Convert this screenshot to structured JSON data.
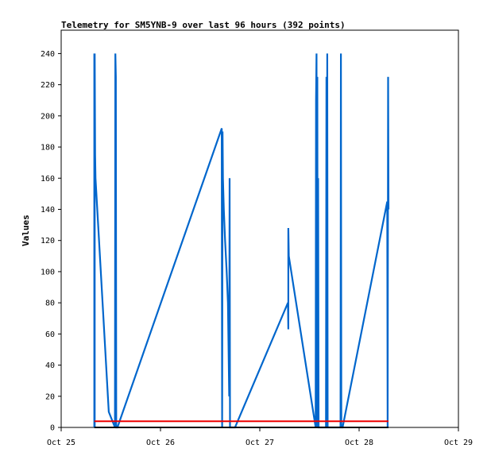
{
  "chart_data": {
    "type": "line",
    "title": "Telemetry for SM5YNB-9 over last 96 hours (392 points)",
    "xlabel": "",
    "ylabel": "Values",
    "xlim": [
      0,
      96
    ],
    "ylim": [
      0,
      255
    ],
    "x_ticks": [
      {
        "value": 0,
        "label": "Oct 25"
      },
      {
        "value": 24,
        "label": "Oct 26"
      },
      {
        "value": 48,
        "label": "Oct 27"
      },
      {
        "value": 72,
        "label": "Oct 28"
      },
      {
        "value": 96,
        "label": "Oct 29"
      }
    ],
    "y_ticks": [
      0,
      20,
      40,
      60,
      80,
      100,
      120,
      140,
      160,
      180,
      200,
      220,
      240
    ],
    "grid": false,
    "series": [
      {
        "color": "#0066cc",
        "points": [
          [
            8.0,
            0
          ],
          [
            8.0,
            240
          ],
          [
            8.1,
            0
          ],
          [
            8.1,
            240
          ],
          [
            8.2,
            175
          ],
          [
            8.3,
            160
          ],
          [
            11.5,
            10
          ],
          [
            13.0,
            0
          ],
          [
            13.1,
            240
          ],
          [
            13.2,
            225
          ],
          [
            13.3,
            0
          ],
          [
            13.6,
            0
          ],
          [
            38.8,
            192
          ],
          [
            38.9,
            0
          ],
          [
            39.0,
            190
          ],
          [
            39.1,
            160
          ],
          [
            39.3,
            140
          ],
          [
            39.6,
            120
          ],
          [
            40.0,
            100
          ],
          [
            40.3,
            80
          ],
          [
            40.6,
            20
          ],
          [
            40.7,
            160
          ],
          [
            40.8,
            0
          ],
          [
            42.0,
            0
          ],
          [
            54.8,
            80
          ],
          [
            54.9,
            63
          ],
          [
            54.9,
            128
          ],
          [
            55.0,
            110
          ],
          [
            61.5,
            0
          ],
          [
            61.6,
            210
          ],
          [
            61.7,
            240
          ],
          [
            61.8,
            0
          ],
          [
            61.9,
            225
          ],
          [
            62.0,
            0
          ],
          [
            62.1,
            160
          ],
          [
            62.2,
            0
          ],
          [
            64.0,
            0
          ],
          [
            64.1,
            225
          ],
          [
            64.2,
            0
          ],
          [
            64.3,
            240
          ],
          [
            64.4,
            0
          ],
          [
            67.5,
            0
          ],
          [
            67.6,
            240
          ],
          [
            67.7,
            0
          ],
          [
            68.0,
            0
          ],
          [
            78.8,
            145
          ],
          [
            78.9,
            0
          ],
          [
            79.0,
            225
          ],
          [
            79.1,
            140
          ]
        ]
      },
      {
        "color": "#ee0000",
        "points": [
          [
            8.0,
            4
          ],
          [
            79.1,
            4
          ]
        ]
      },
      {
        "color": "#000000",
        "points": [
          [
            8.0,
            0
          ],
          [
            79.1,
            0
          ]
        ]
      }
    ]
  }
}
